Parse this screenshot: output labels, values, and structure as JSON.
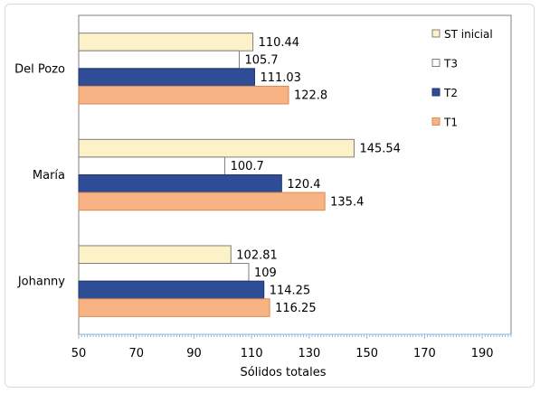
{
  "chart_data": {
    "type": "bar",
    "orientation": "horizontal",
    "title": "",
    "xlabel": "Sólidos totales",
    "ylabel": "",
    "xlim": [
      50,
      200
    ],
    "xticks": [
      50,
      70,
      90,
      110,
      130,
      150,
      170,
      190
    ],
    "tick_labels": [
      "50",
      "70",
      "90",
      "110",
      "130",
      "150",
      "170",
      "190"
    ],
    "categories": [
      "Del Pozo",
      "María",
      "Johanny"
    ],
    "series": [
      {
        "name": "ST inicial",
        "values": [
          110.44,
          145.54,
          102.81
        ],
        "labels": [
          "110.44",
          "145.54",
          "102.81"
        ],
        "color": "#fdf1c7",
        "stroke": "#7f7f7f"
      },
      {
        "name": "T3",
        "values": [
          105.7,
          100.7,
          109
        ],
        "labels": [
          "105.7",
          "100.7",
          "109"
        ],
        "color": "#ffffff",
        "stroke": "#7f7f7f"
      },
      {
        "name": "T2",
        "values": [
          111.03,
          120.4,
          114.25
        ],
        "labels": [
          "111.03",
          "120.4",
          "114.25"
        ],
        "color": "#2f4d97",
        "stroke": "#1f3570"
      },
      {
        "name": "T1",
        "values": [
          122.8,
          135.4,
          116.25
        ],
        "labels": [
          "122.8",
          "135.4",
          "116.25"
        ],
        "color": "#f7b383",
        "stroke": "#d98a55"
      }
    ],
    "grid": false,
    "legend_position": "top-right"
  }
}
